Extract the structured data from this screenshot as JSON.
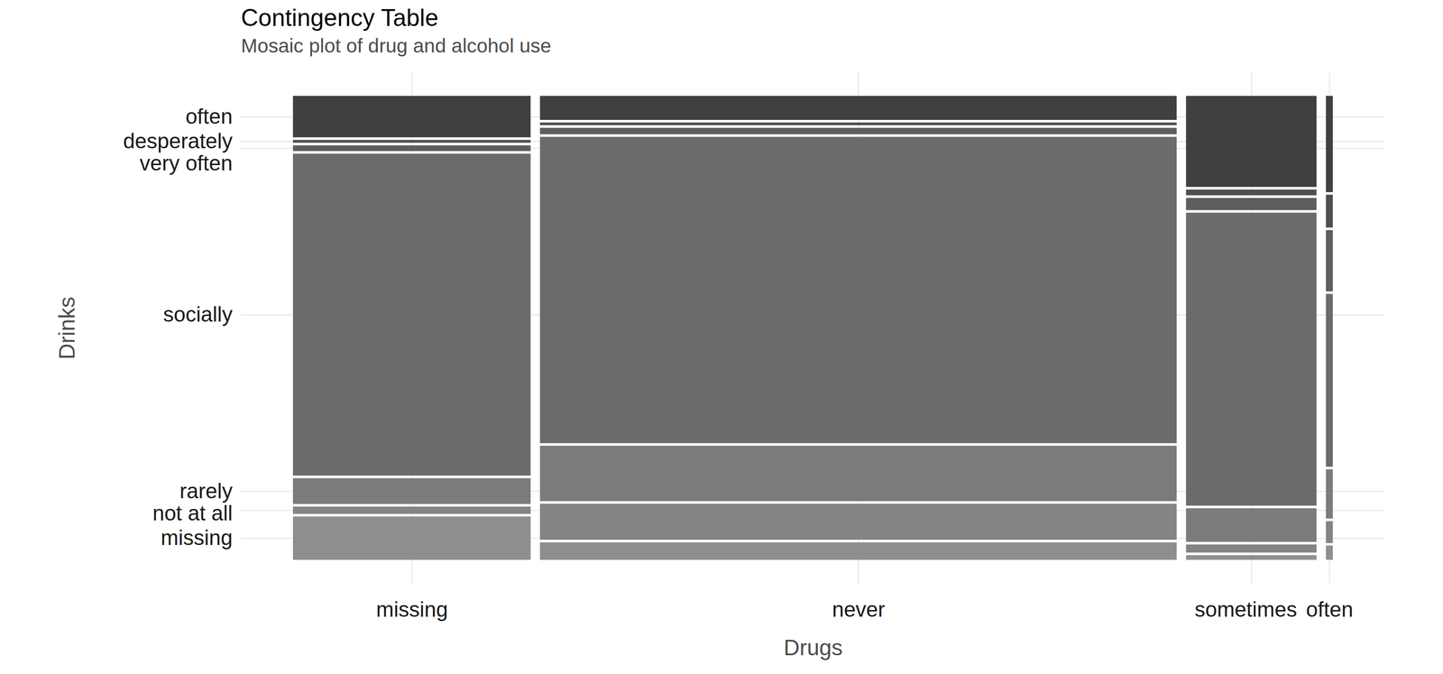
{
  "chart_data": {
    "type": "mosaic",
    "title": "Contingency Table",
    "subtitle": "Mosaic plot of drug and alcohol use",
    "x_label": "Drugs",
    "y_label": "Drinks",
    "categories": [
      "missing",
      "never",
      "sometimes",
      "often"
    ],
    "series": [
      {
        "name": "missing",
        "color": "#8e8e8e",
        "values": [
          1360,
          1470,
          80,
          13
        ]
      },
      {
        "name": "not at all",
        "color": "#848484",
        "values": [
          230,
          3030,
          140,
          20
        ]
      },
      {
        "name": "rarely",
        "color": "#7b7b7b",
        "values": [
          810,
          4660,
          580,
          45
        ]
      },
      {
        "name": "socially",
        "color": "#6b6b6b",
        "values": [
          10110,
          25774,
          5052,
          158
        ]
      },
      {
        "name": "very often",
        "color": "#5e5e5e",
        "values": [
          180,
          540,
          210,
          56
        ]
      },
      {
        "name": "desperately",
        "color": "#4f4f4f",
        "values": [
          90,
          230,
          100,
          30
        ]
      },
      {
        "name": "often",
        "color": "#404040",
        "values": [
          1300,
          2020,
          1570,
          88
        ]
      }
    ],
    "grid": true
  }
}
